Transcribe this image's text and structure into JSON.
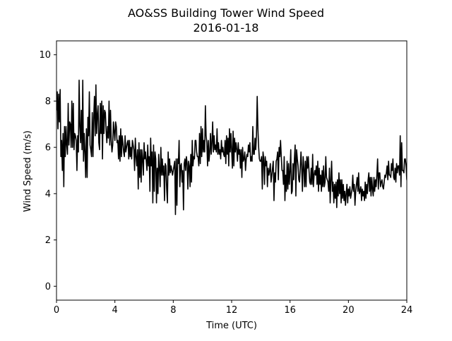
{
  "chart_data": {
    "type": "line",
    "title": [
      "AO&SS Building Tower Wind Speed",
      "2016-01-18"
    ],
    "xlabel": "Time (UTC)",
    "ylabel": "Wind Speed (m/s)",
    "xlim": [
      0,
      24
    ],
    "ylim": [
      -0.6,
      10.6
    ],
    "x_ticks": [
      0,
      4,
      8,
      12,
      16,
      20,
      24
    ],
    "y_ticks": [
      0,
      2,
      4,
      6,
      8,
      10
    ],
    "grid": false,
    "legend": "none",
    "line_color": "#000000",
    "sample_interval_hours": 0.05,
    "series": [
      {
        "x_start": 0,
        "values": [
          7.6,
          8.4,
          6.8,
          8.3,
          7.1,
          8.5,
          5.6,
          6.3,
          5.0,
          6.6,
          4.3,
          6.9,
          5.6,
          6.9,
          6.1,
          5.7,
          7.9,
          6.1,
          7.1,
          7.0,
          6.0,
          8.0,
          6.0,
          7.9,
          5.9,
          6.6,
          6.5,
          6.3,
          5.0,
          6.5,
          5.8,
          8.9,
          6.9,
          6.2,
          7.6,
          5.9,
          8.9,
          5.4,
          6.6,
          5.8,
          4.7,
          6.8,
          4.7,
          7.3,
          6.5,
          8.4,
          6.1,
          5.9,
          5.6,
          7.5,
          5.6,
          7.3,
          8.2,
          6.5,
          8.7,
          6.6,
          7.4,
          7.8,
          6.2,
          5.9,
          7.9,
          6.6,
          8.0,
          5.5,
          7.8,
          6.6,
          7.6,
          7.5,
          6.7,
          6.2,
          6.9,
          6.4,
          8.0,
          6.1,
          7.6,
          6.3,
          5.8,
          6.1,
          7.1,
          6.7,
          6.3,
          7.1,
          6.9,
          6.2,
          6.3,
          5.5,
          6.5,
          5.4,
          6.8,
          5.6,
          6.5,
          6.2,
          5.8,
          5.6,
          6.5,
          5.8,
          6.0,
          6.2,
          6.3,
          5.5,
          6.3,
          5.6,
          6.0,
          5.5,
          6.3,
          6.1,
          5.9,
          5.0,
          6.4,
          5.6,
          5.2,
          5.9,
          4.2,
          6.2,
          4.7,
          5.9,
          4.5,
          5.9,
          5.5,
          4.8,
          6.2,
          5.5,
          5.8,
          5.4,
          5.0,
          6.1,
          5.2,
          5.6,
          4.1,
          6.4,
          5.2,
          5.8,
          3.6,
          6.1,
          4.1,
          5.8,
          5.5,
          3.6,
          5.1,
          4.0,
          5.7,
          5.1,
          4.3,
          6.0,
          4.8,
          5.5,
          4.8,
          5.2,
          3.7,
          5.3,
          5.2,
          4.2,
          3.6,
          5.8,
          4.8,
          5.5,
          4.9,
          5.2,
          5.0,
          4.8,
          5.0,
          5.2,
          5.4,
          3.1,
          5.5,
          3.5,
          5.5,
          5.3,
          6.3,
          4.3,
          5.2,
          5.3,
          4.5,
          5.0,
          3.3,
          5.3,
          5.5,
          5.0,
          5.6,
          5.3,
          4.2,
          5.4,
          5.2,
          4.3,
          5.7,
          4.5,
          6.3,
          5.2,
          5.6,
          5.5,
          6.3,
          6.3,
          5.8,
          5.6,
          5.6,
          5.2,
          6.6,
          5.3,
          6.9,
          5.6,
          6.8,
          5.8,
          6.3,
          5.8,
          7.8,
          6.5,
          6.2,
          5.2,
          6.3,
          5.4,
          5.8,
          6.6,
          5.7,
          6.2,
          7.1,
          5.8,
          6.5,
          5.9,
          6.1,
          5.8,
          6.8,
          5.7,
          6.2,
          5.7,
          5.9,
          5.5,
          6.3,
          5.8,
          6.0,
          5.7,
          5.6,
          6.3,
          5.3,
          6.5,
          5.7,
          6.4,
          5.2,
          6.8,
          5.8,
          6.6,
          5.9,
          5.1,
          6.7,
          5.2,
          6.4,
          5.8,
          6.2,
          5.9,
          5.4,
          6.2,
          5.7,
          5.9,
          5.1,
          5.9,
          4.7,
          6.0,
          5.4,
          5.5,
          5.8,
          5.0,
          5.5,
          5.7,
          5.6,
          6.1,
          5.8,
          6.2,
          5.4,
          5.6,
          5.4,
          6.9,
          5.7,
          5.7,
          6.4,
          5.9,
          6.5,
          8.2,
          6.8,
          6.0,
          5.5,
          5.4,
          5.4,
          5.6,
          4.2,
          5.8,
          5.5,
          4.4,
          5.6,
          5.2,
          5.4,
          4.3,
          5.1,
          4.8,
          5.0,
          5.3,
          4.5,
          4.8,
          5.1,
          5.4,
          3.7,
          4.9,
          4.5,
          5.4,
          5.5,
          5.8,
          4.6,
          6.0,
          5.6,
          6.3,
          5.6,
          5.0,
          5.0,
          4.4,
          5.6,
          3.7,
          4.8,
          4.1,
          5.4,
          4.2,
          5.3,
          4.4,
          5.0,
          5.9,
          4.0,
          4.1,
          5.3,
          4.6,
          5.5,
          6.1,
          3.9,
          5.9,
          5.5,
          5.2,
          4.6,
          4.5,
          5.1,
          5.8,
          5.1,
          4.1,
          5.6,
          5.1,
          4.3,
          5.4,
          4.3,
          5.6,
          5.1,
          5.6,
          5.0,
          4.5,
          4.4,
          5.1,
          4.4,
          5.7,
          4.3,
          4.8,
          5.0,
          4.8,
          5.2,
          4.4,
          5.4,
          4.1,
          5.1,
          4.4,
          4.8,
          4.1,
          5.0,
          4.3,
          5.2,
          4.3,
          4.5,
          5.6,
          4.7,
          4.6,
          4.5,
          4.1,
          5.1,
          3.6,
          4.6,
          5.4,
          4.1,
          4.5,
          3.6,
          4.4,
          3.8,
          4.5,
          3.4,
          4.6,
          3.9,
          4.9,
          4.0,
          4.6,
          3.6,
          4.6,
          3.8,
          4.4,
          3.7,
          4.1,
          3.5,
          4.0,
          4.4,
          3.6,
          4.2,
          3.9,
          4.3,
          3.8,
          4.0,
          4.2,
          4.8,
          4.1,
          4.4,
          3.5,
          4.1,
          4.4,
          4.7,
          4.1,
          4.9,
          4.0,
          4.1,
          4.3,
          3.7,
          4.2,
          3.9,
          4.1,
          3.7,
          4.5,
          3.8,
          4.4,
          4.0,
          4.6,
          4.9,
          4.1,
          4.7,
          3.9,
          4.7,
          4.2,
          3.9,
          4.7,
          4.1,
          4.6,
          4.3,
          4.8,
          5.5,
          4.2,
          4.9,
          4.9,
          4.3,
          4.5,
          4.6,
          4.3,
          4.2,
          4.5,
          4.8,
          4.7,
          4.9,
          5.2,
          4.6,
          5.4,
          4.8,
          4.8,
          4.7,
          5.3,
          5.0,
          5.5,
          4.7,
          4.6,
          5.1,
          4.5,
          5.3,
          4.9,
          5.2,
          5.2,
          4.8,
          6.5,
          4.3,
          6.2,
          5.0,
          5.0,
          4.9,
          5.5,
          5.5,
          5.2,
          4.6,
          5.8,
          4.9,
          5.0
        ]
      }
    ]
  }
}
